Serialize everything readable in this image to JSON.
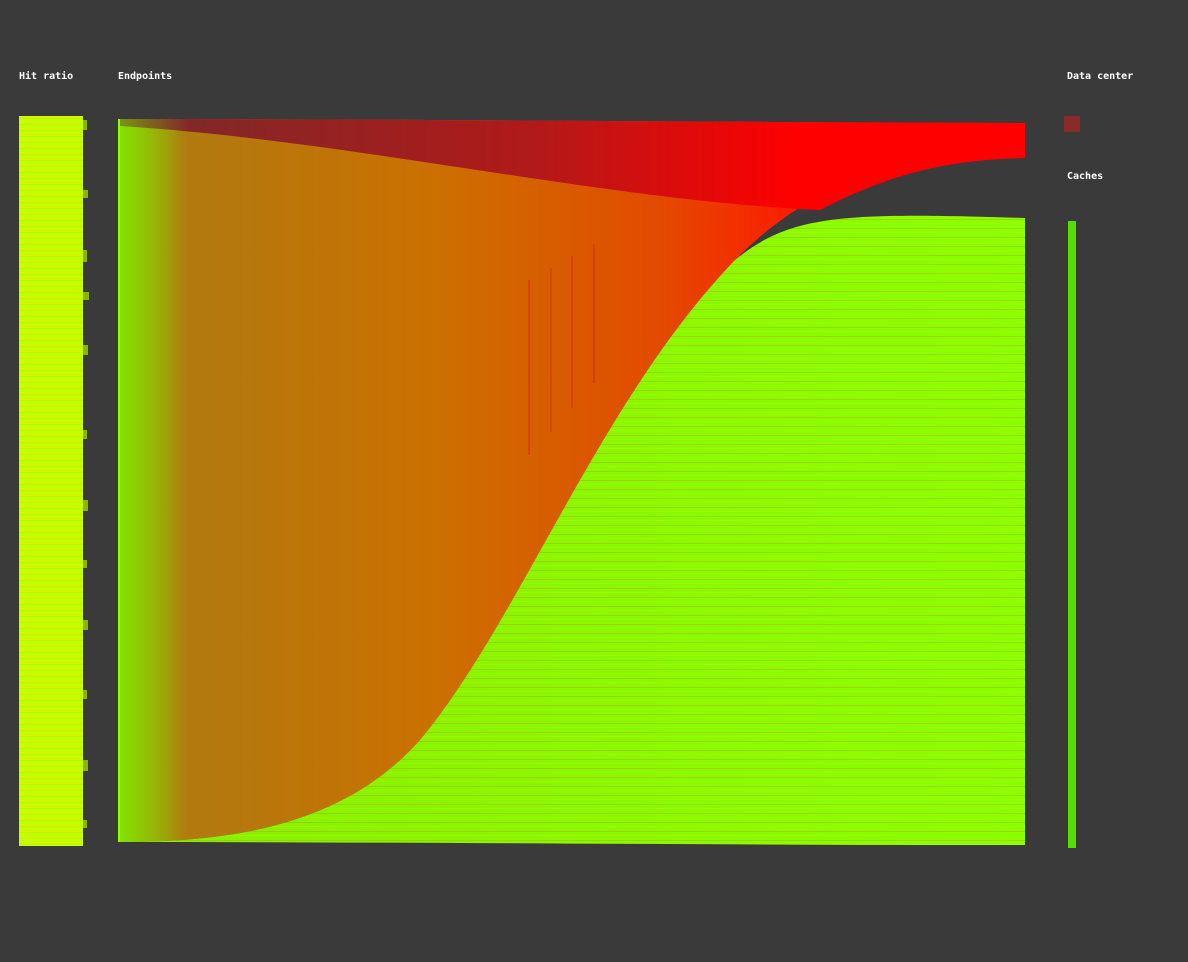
{
  "columns": {
    "hit_ratio_label": "Hit ratio",
    "endpoints_label": "Endpoints",
    "data_center_label": "Data center",
    "caches_label": "Caches"
  },
  "colors": {
    "background": "#3a3a3a",
    "hit_ratio_fill": "#c8ff00",
    "miss_color": "#ff0000",
    "hit_color": "#80ff00",
    "data_center_node": "#8b2020",
    "caches_node": "#55dd00"
  },
  "flows": {
    "to_data_center_share": 0.12,
    "to_caches_share": 0.88
  }
}
